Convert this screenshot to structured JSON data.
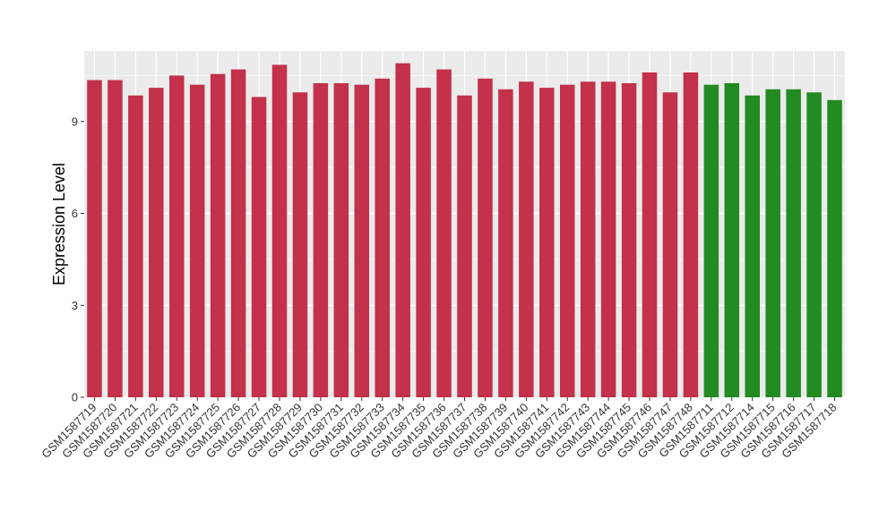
{
  "chart_data": {
    "type": "bar",
    "title": "",
    "xlabel": "",
    "ylabel": "Expression Level",
    "ylim": [
      0,
      11.3
    ],
    "yticks": [
      0,
      3,
      6,
      9
    ],
    "grid": true,
    "legend": "none",
    "panel_background": "#EBEBEB",
    "grid_color": "#FFFFFF",
    "categories": [
      "GSM1587719",
      "GSM1587720",
      "GSM1587721",
      "GSM1587722",
      "GSM1587723",
      "GSM1587724",
      "GSM1587725",
      "GSM1587726",
      "GSM1587727",
      "GSM1587728",
      "GSM1587729",
      "GSM1587730",
      "GSM1587731",
      "GSM1587732",
      "GSM1587733",
      "GSM1587734",
      "GSM1587735",
      "GSM1587736",
      "GSM1587737",
      "GSM1587738",
      "GSM1587739",
      "GSM1587740",
      "GSM1587741",
      "GSM1587742",
      "GSM1587743",
      "GSM1587744",
      "GSM1587745",
      "GSM1587746",
      "GSM1587747",
      "GSM1587748",
      "GSM1587711",
      "GSM1587712",
      "GSM1587714",
      "GSM1587715",
      "GSM1587716",
      "GSM1587717",
      "GSM1587718"
    ],
    "values": [
      10.35,
      10.35,
      9.85,
      10.1,
      10.5,
      10.2,
      10.55,
      10.7,
      9.8,
      10.85,
      9.95,
      10.25,
      10.25,
      10.2,
      10.4,
      10.9,
      10.1,
      10.7,
      9.85,
      10.4,
      10.05,
      10.3,
      10.1,
      10.2,
      10.3,
      10.3,
      10.25,
      10.6,
      9.95,
      10.6,
      10.2,
      10.25,
      9.85,
      10.05,
      10.05,
      9.95,
      9.7
    ],
    "bar_colors": [
      "#C3314A",
      "#C3314A",
      "#C3314A",
      "#C3314A",
      "#C3314A",
      "#C3314A",
      "#C3314A",
      "#C3314A",
      "#C3314A",
      "#C3314A",
      "#C3314A",
      "#C3314A",
      "#C3314A",
      "#C3314A",
      "#C3314A",
      "#C3314A",
      "#C3314A",
      "#C3314A",
      "#C3314A",
      "#C3314A",
      "#C3314A",
      "#C3314A",
      "#C3314A",
      "#C3314A",
      "#C3314A",
      "#C3314A",
      "#C3314A",
      "#C3314A",
      "#C3314A",
      "#C3314A",
      "#228B22",
      "#228B22",
      "#228B22",
      "#228B22",
      "#228B22",
      "#228B22",
      "#228B22"
    ]
  }
}
